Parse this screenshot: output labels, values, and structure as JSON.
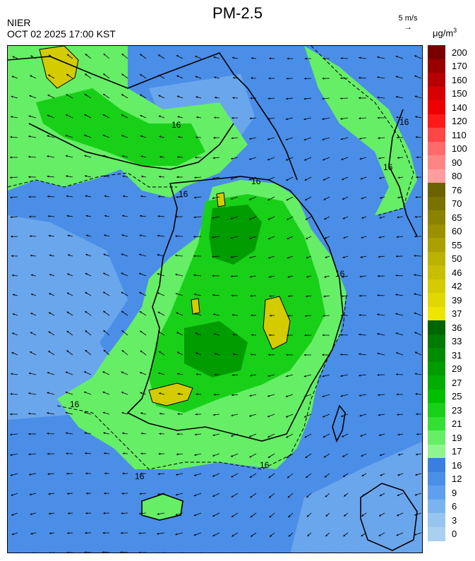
{
  "header": {
    "title": "PM-2.5",
    "source": "NIER",
    "datetime": "OCT 02 2025 17:00 KST"
  },
  "wind_reference": {
    "label": "5 m/s",
    "arrow": "→"
  },
  "legend": {
    "unit_base": "μg/m",
    "unit_exp": "3",
    "levels": [
      {
        "label": "200",
        "color": "#7a0000"
      },
      {
        "label": "170",
        "color": "#990000"
      },
      {
        "label": "160",
        "color": "#b80000"
      },
      {
        "label": "150",
        "color": "#d60000"
      },
      {
        "label": "140",
        "color": "#ee0000"
      },
      {
        "label": "120",
        "color": "#ff1a1a"
      },
      {
        "label": "110",
        "color": "#ff4646"
      },
      {
        "label": "100",
        "color": "#ff6b6b"
      },
      {
        "label": "90",
        "color": "#ff8585"
      },
      {
        "label": "80",
        "color": "#ff9e9e"
      },
      {
        "label": "76",
        "color": "#6b6200"
      },
      {
        "label": "70",
        "color": "#7a7200"
      },
      {
        "label": "65",
        "color": "#8a8200"
      },
      {
        "label": "60",
        "color": "#9a9000"
      },
      {
        "label": "55",
        "color": "#aaa000"
      },
      {
        "label": "50",
        "color": "#bbb200"
      },
      {
        "label": "46",
        "color": "#c8bf00"
      },
      {
        "label": "42",
        "color": "#d4cb00"
      },
      {
        "label": "39",
        "color": "#e0d800"
      },
      {
        "label": "37",
        "color": "#ece600"
      },
      {
        "label": "36",
        "color": "#006400"
      },
      {
        "label": "33",
        "color": "#007a00"
      },
      {
        "label": "31",
        "color": "#008c00"
      },
      {
        "label": "29",
        "color": "#009c00"
      },
      {
        "label": "27",
        "color": "#00ad00"
      },
      {
        "label": "25",
        "color": "#00be00"
      },
      {
        "label": "23",
        "color": "#19d019"
      },
      {
        "label": "21",
        "color": "#33e033"
      },
      {
        "label": "19",
        "color": "#66ee66"
      },
      {
        "label": "17",
        "color": "#8ff58f"
      },
      {
        "label": "16",
        "color": "#3a7fe0"
      },
      {
        "label": "12",
        "color": "#4a8ee8"
      },
      {
        "label": "9",
        "color": "#5fa0ee"
      },
      {
        "label": "6",
        "color": "#7ab4f0"
      },
      {
        "label": "3",
        "color": "#96c6f0"
      },
      {
        "label": "0",
        "color": "#a8d0f0"
      }
    ]
  },
  "map": {
    "sea_color": "#4a8ee8",
    "sea_light_color": "#6aa6ec",
    "land_low_color": "#66ee66",
    "land_mid_color": "#19d019",
    "land_high_color": "#009c00",
    "hotspot_color": "#d4cb00",
    "contour_labels": [
      "16",
      "16",
      "16",
      "16",
      "16",
      "16",
      "16",
      "16",
      "16"
    ]
  }
}
